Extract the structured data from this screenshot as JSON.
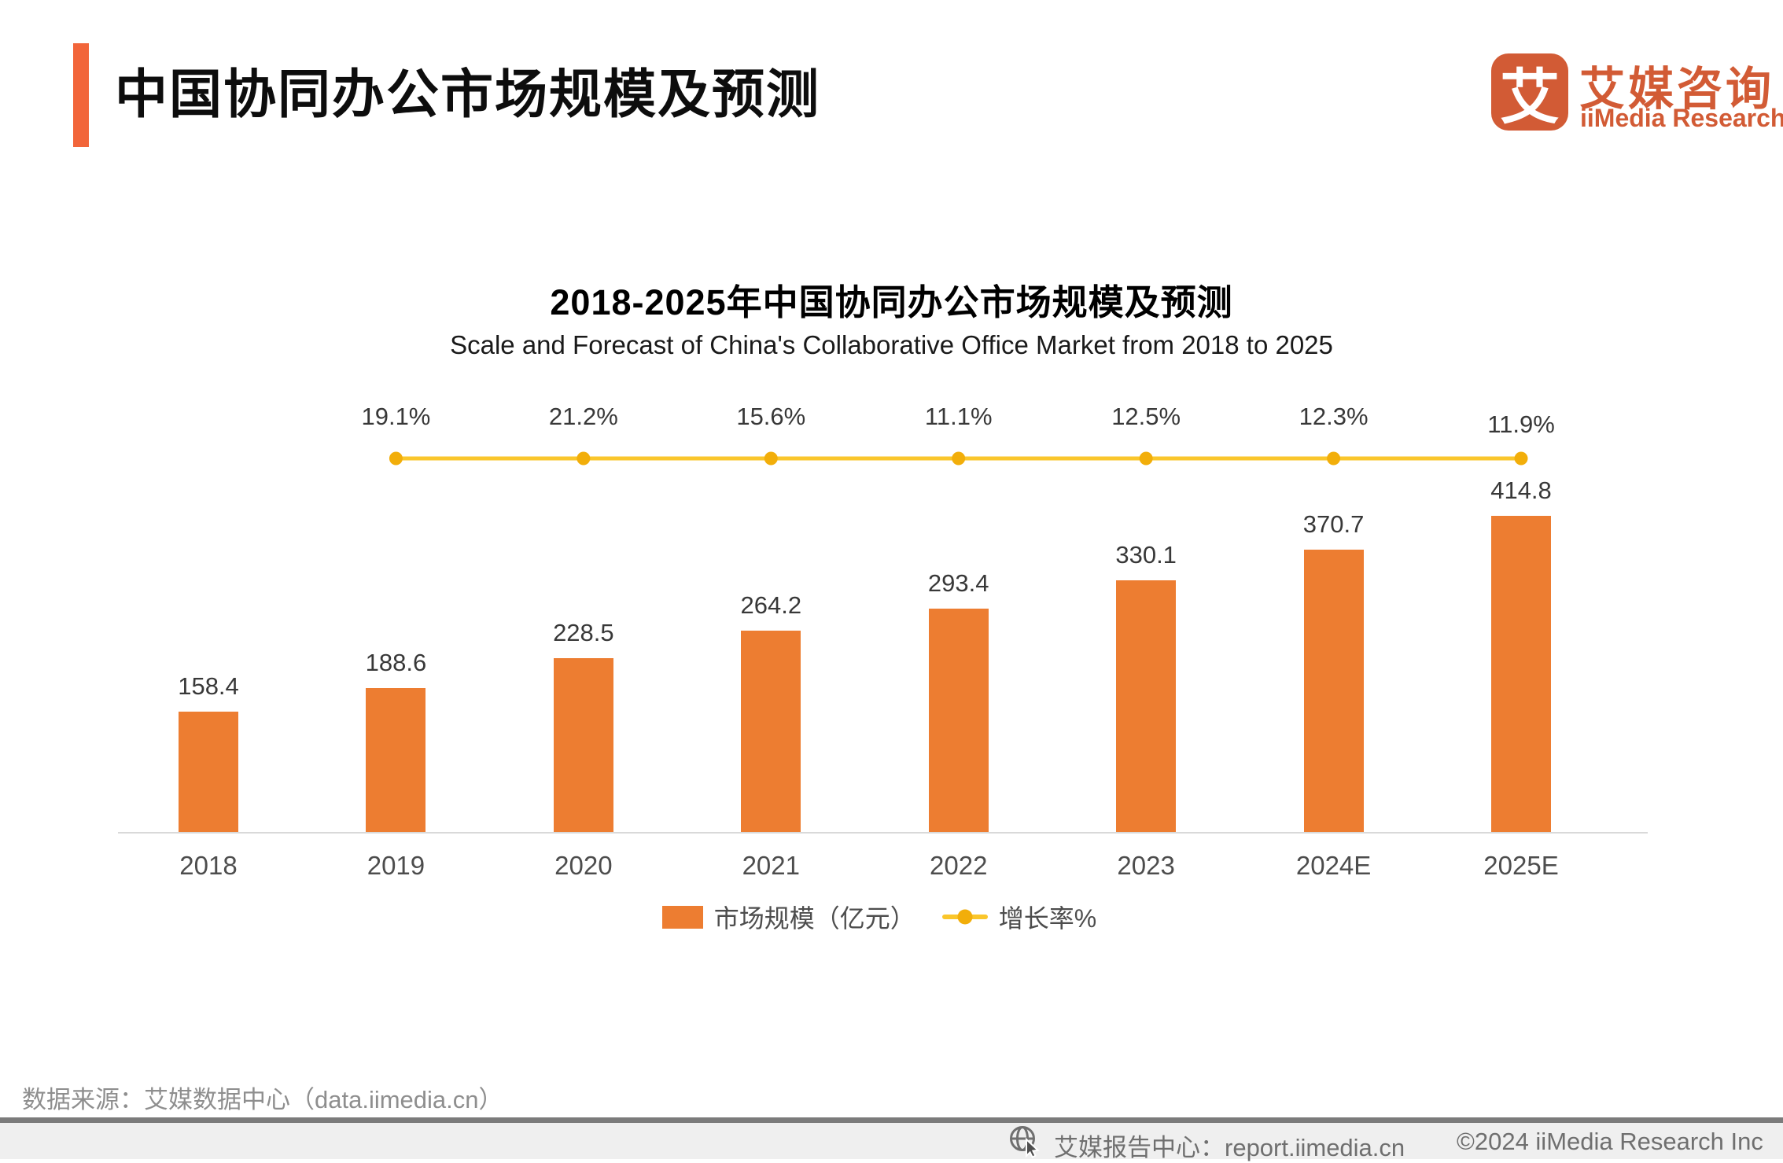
{
  "header": {
    "title": "中国协同办公市场规模及预测"
  },
  "logo": {
    "icon_char": "艾",
    "name_cn": "艾媒咨询",
    "name_en": "iiMedia Research"
  },
  "chart_data": {
    "type": "bar",
    "title": "2018-2025年中国协同办公市场规模及预测",
    "subtitle": "Scale and Forecast of China's Collaborative Office Market from 2018 to 2025",
    "categories": [
      "2018",
      "2019",
      "2020",
      "2021",
      "2022",
      "2023",
      "2024E",
      "2025E"
    ],
    "series": [
      {
        "name": "市场规模（亿元）",
        "type": "bar",
        "values": [
          158.4,
          188.6,
          228.5,
          264.2,
          293.4,
          330.1,
          370.7,
          414.8
        ],
        "color": "#ED7D31"
      },
      {
        "name": "增长率%",
        "type": "line",
        "categories": [
          "2019",
          "2020",
          "2021",
          "2022",
          "2023",
          "2024E",
          "2025E"
        ],
        "values": [
          19.1,
          21.2,
          15.6,
          11.1,
          12.5,
          12.3,
          11.9
        ],
        "labels": [
          "19.1%",
          "21.2%",
          "15.6%",
          "11.1%",
          "12.5%",
          "12.3%",
          "11.9%"
        ],
        "line_color": "#FAC62B",
        "marker_color": "#F2AE0A"
      }
    ],
    "ylim": [
      0,
      430
    ],
    "grid": false,
    "value_labels": true,
    "legend_position": "bottom"
  },
  "source_note": "数据来源：艾媒数据中心（data.iimedia.cn）",
  "footer": {
    "report_center": "艾媒报告中心：report.iimedia.cn",
    "copyright": "©2024  iiMedia Research  Inc"
  },
  "colors": {
    "accent_orange": "#F2653A",
    "bar_orange": "#ED7D31",
    "line_yellow": "#FAC62B",
    "marker_gold": "#F2AE0A",
    "logo_orange": "#D25B35",
    "axis_gray": "#D9D9D9",
    "footer_band_gray": "#EFEFEF",
    "footer_rule_gray": "#7B7B7B"
  }
}
